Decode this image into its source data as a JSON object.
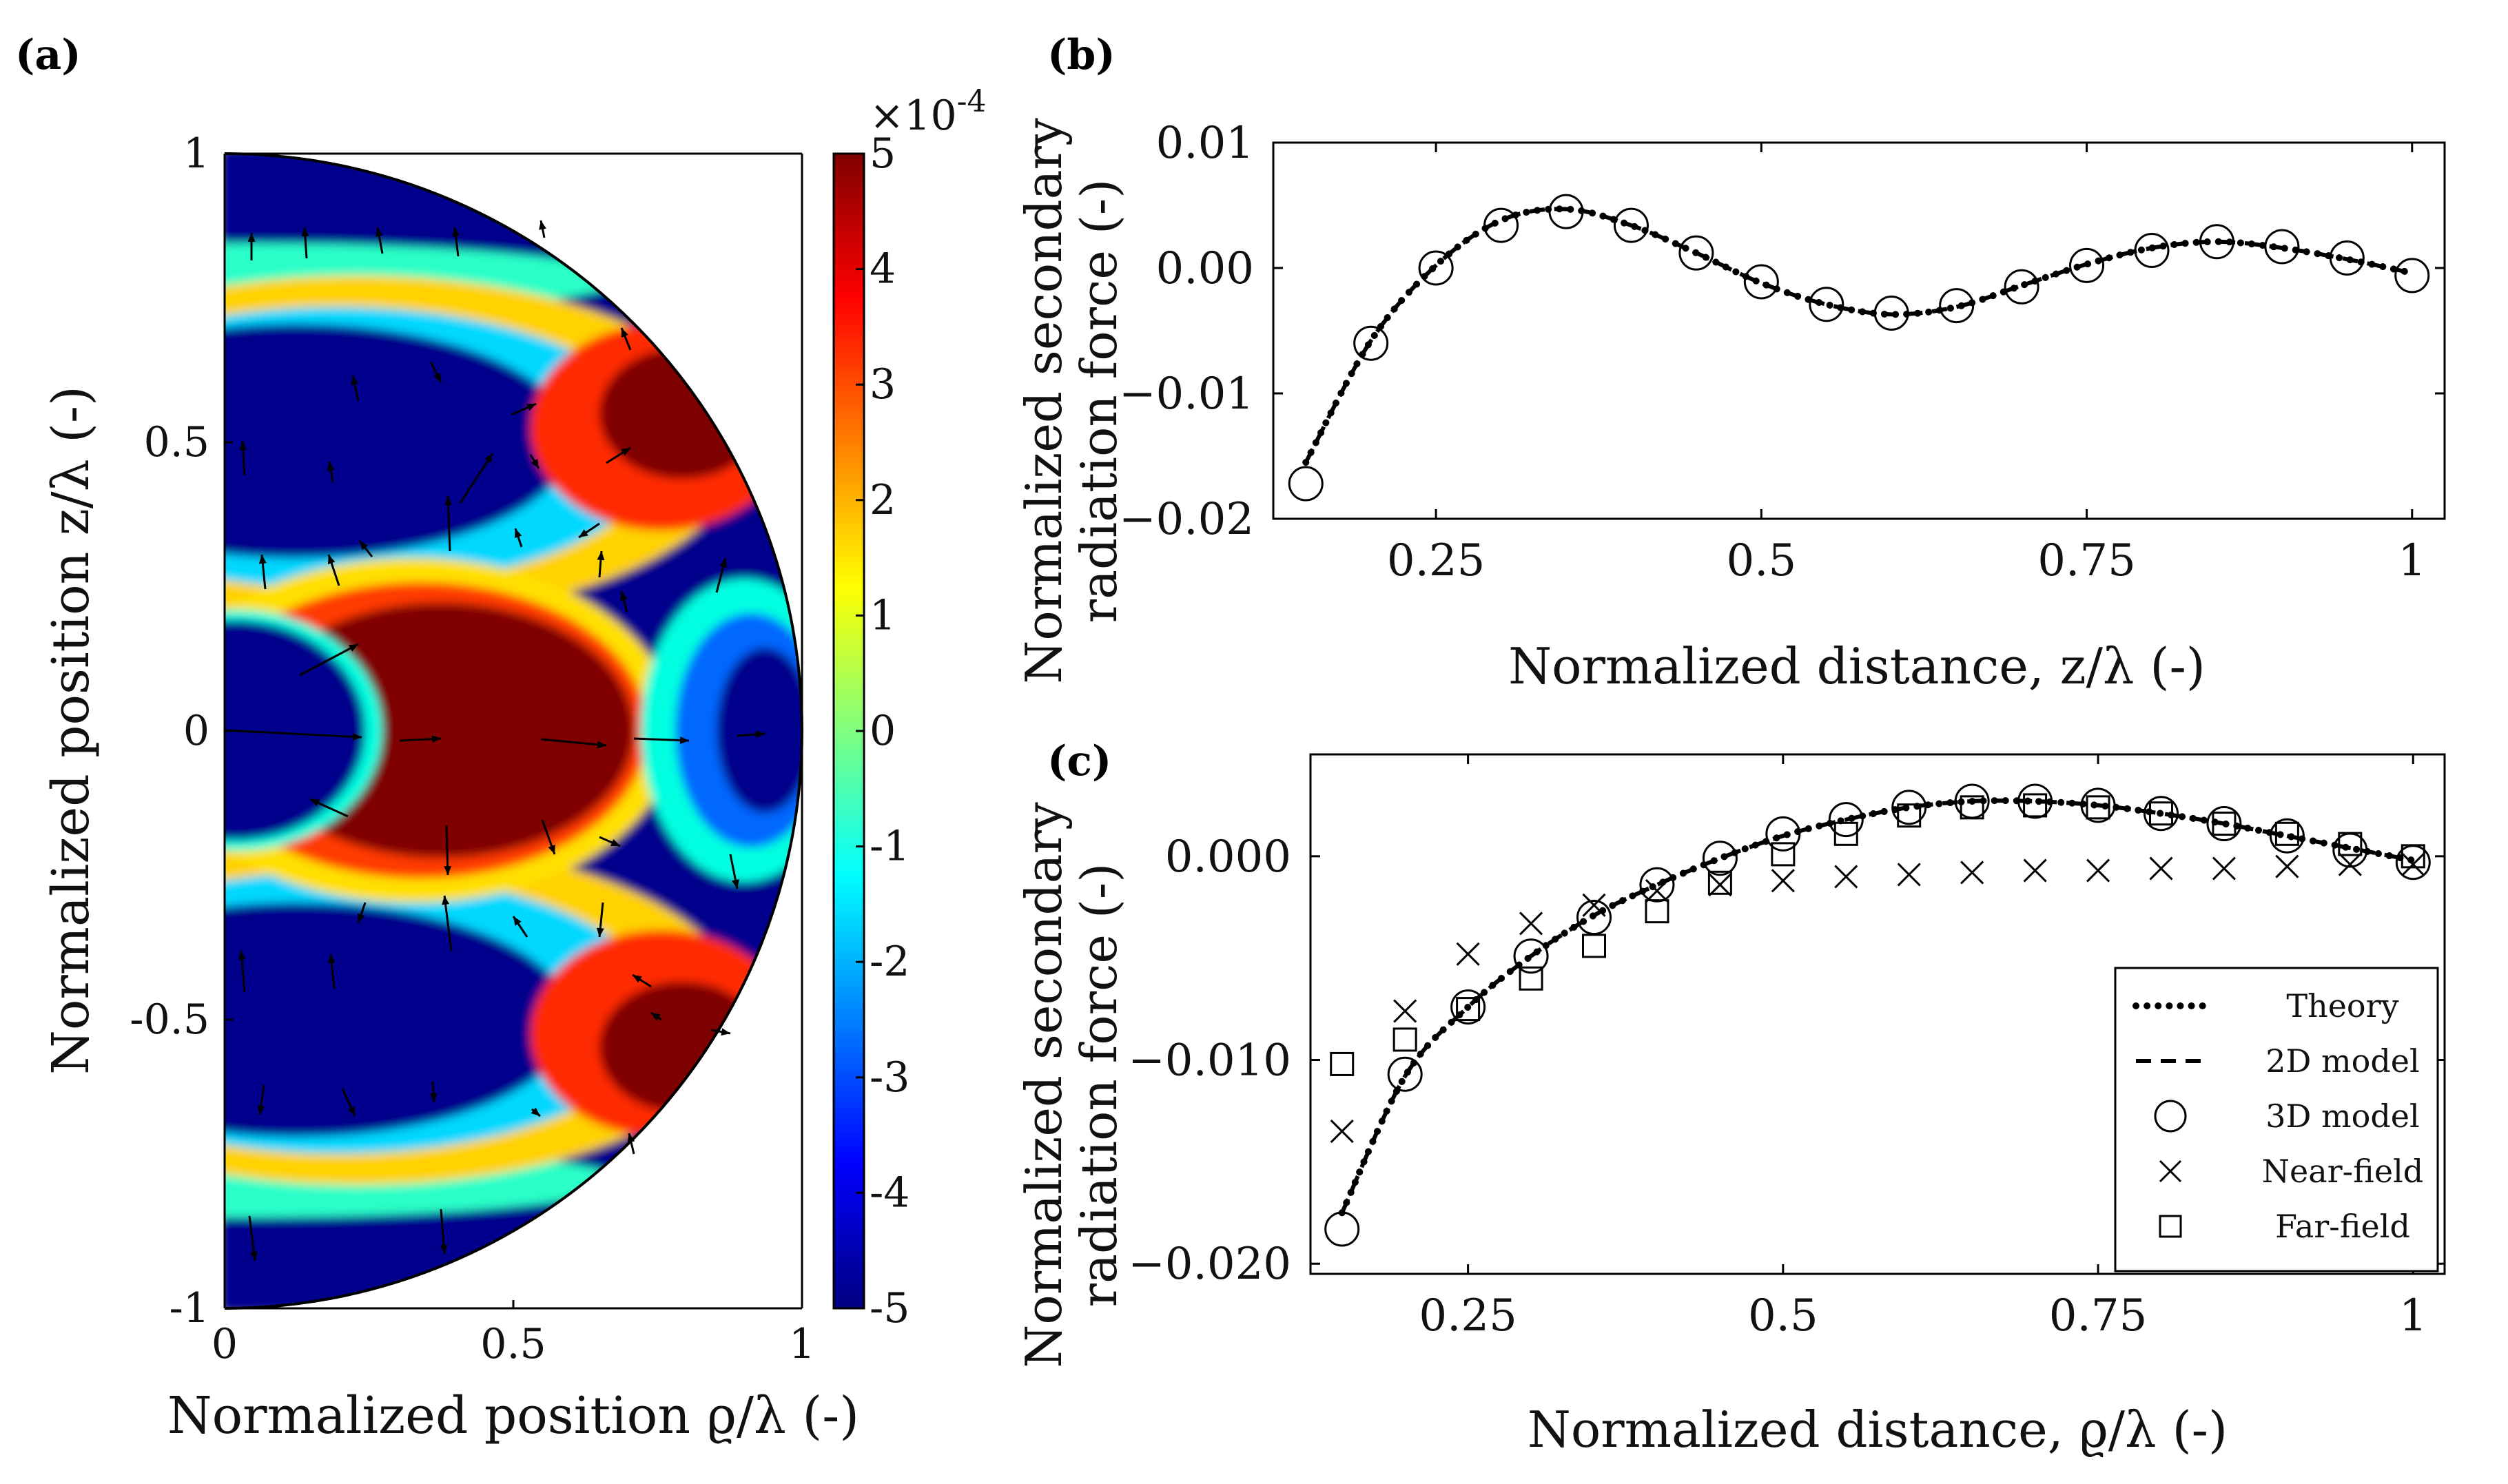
{
  "panel_labels": {
    "a": "(a)",
    "b": "(b)",
    "c": "(c)"
  },
  "chart_data": [
    {
      "id": "a",
      "type": "heatmap",
      "description_text": "",
      "xlabel": "Normalized position ϱ/λ (-)",
      "ylabel": "Normalized position z/λ (-)",
      "xlim": [
        0,
        1
      ],
      "ylim": [
        -1,
        1
      ],
      "xticks": [
        0,
        0.5,
        1
      ],
      "xtick_labels": [
        "0",
        "0.5",
        "1"
      ],
      "yticks": [
        1,
        0.5,
        0,
        -0.5,
        -1
      ],
      "ytick_labels": [
        "1",
        "0.5",
        "0",
        "-0.5",
        "-1"
      ],
      "colorbar": {
        "min": -5,
        "max": 5,
        "ticks": [
          5,
          4,
          3,
          2,
          1,
          0,
          -1,
          -2,
          -3,
          -4,
          -5
        ],
        "tick_labels": [
          "5",
          "4",
          "3",
          "2",
          "1",
          "0",
          "-1",
          "-2",
          "-3",
          "-4",
          "-5"
        ],
        "multiplier": "×10",
        "exponent": "-4",
        "colormap": [
          "#00007f",
          "#0000ff",
          "#007fff",
          "#00ffff",
          "#7fff7f",
          "#ffff00",
          "#ff7f00",
          "#ff0000",
          "#7f0000"
        ]
      }
    },
    {
      "id": "b",
      "type": "line",
      "xlabel": "Normalized distance, z/λ (-)",
      "ylabel_line1": "Normalized secondary",
      "ylabel_line2": "radiation force (-)",
      "xlim": [
        0.125,
        1.025
      ],
      "ylim": [
        -0.02,
        0.01
      ],
      "xticks": [
        0.25,
        0.5,
        0.75,
        1
      ],
      "xtick_labels": [
        "0.25",
        "0.5",
        "0.75",
        "1"
      ],
      "yticks": [
        0.01,
        0,
        -0.01,
        -0.02
      ],
      "ytick_labels": [
        "0.01",
        "0.00",
        "−0.01",
        "−0.02"
      ],
      "x": [
        0.15,
        0.2,
        0.25,
        0.3,
        0.35,
        0.4,
        0.45,
        0.5,
        0.55,
        0.6,
        0.65,
        0.7,
        0.75,
        0.8,
        0.85,
        0.9,
        0.95,
        1.0
      ],
      "series": [
        {
          "name": "Theory",
          "style": "dotted",
          "values": [
            -0.0155,
            -0.0058,
            0.0002,
            0.0038,
            0.0047,
            0.0034,
            0.0012,
            -0.0012,
            -0.0029,
            -0.0037,
            -0.0031,
            -0.0014,
            0.0003,
            0.0016,
            0.0021,
            0.0016,
            0.0007,
            -0.0004
          ]
        },
        {
          "name": "2D model",
          "style": "dashed",
          "values": [
            -0.0155,
            -0.0058,
            0.0002,
            0.0038,
            0.0047,
            0.0034,
            0.0012,
            -0.0012,
            -0.0029,
            -0.0037,
            -0.0031,
            -0.0014,
            0.0003,
            0.0016,
            0.0021,
            0.0016,
            0.0007,
            -0.0004
          ]
        },
        {
          "name": "3D model",
          "style": "circle",
          "values": [
            -0.0172,
            -0.006,
            0.0,
            0.0034,
            0.0045,
            0.0034,
            0.0012,
            -0.0011,
            -0.0029,
            -0.0036,
            -0.003,
            -0.0015,
            0.0002,
            0.0014,
            0.0021,
            0.0017,
            0.0008,
            -0.0006
          ]
        }
      ]
    },
    {
      "id": "c",
      "type": "line",
      "xlabel": "Normalized distance, ϱ/λ (-)",
      "ylabel_line1": "Normalized secondary",
      "ylabel_line2": "radiation force (-)",
      "xlim": [
        0.125,
        1.025
      ],
      "ylim": [
        -0.0205,
        0.005
      ],
      "xticks": [
        0.25,
        0.5,
        0.75,
        1
      ],
      "xtick_labels": [
        "0.25",
        "0.5",
        "0.75",
        "1"
      ],
      "yticks": [
        0,
        -0.01,
        -0.02
      ],
      "ytick_labels": [
        "0.000",
        "−0.010",
        "−0.020"
      ],
      "x": [
        0.15,
        0.2,
        0.25,
        0.3,
        0.35,
        0.4,
        0.45,
        0.5,
        0.55,
        0.6,
        0.65,
        0.7,
        0.75,
        0.8,
        0.85,
        0.9,
        0.95,
        1.0
      ],
      "legend_position": "bottom-right",
      "series": [
        {
          "name": "Theory",
          "style": "dotted",
          "values": [
            -0.0175,
            -0.0108,
            -0.0074,
            -0.0049,
            -0.0029,
            -0.0014,
            -0.0001,
            0.001,
            0.0018,
            0.0024,
            0.0027,
            0.0027,
            0.0025,
            0.0021,
            0.0016,
            0.001,
            0.0004,
            -0.0002
          ]
        },
        {
          "name": "2D model",
          "style": "dashed",
          "values": [
            -0.0175,
            -0.0108,
            -0.0074,
            -0.0049,
            -0.0029,
            -0.0014,
            -0.0001,
            0.001,
            0.0018,
            0.0024,
            0.0027,
            0.0027,
            0.0025,
            0.0021,
            0.0016,
            0.001,
            0.0004,
            -0.0002
          ]
        },
        {
          "name": "3D model",
          "style": "circle",
          "values": [
            -0.0183,
            -0.0107,
            -0.0074,
            -0.0049,
            -0.003,
            -0.0014,
            -0.0001,
            0.0011,
            0.0018,
            0.0024,
            0.0027,
            0.0027,
            0.0025,
            0.0021,
            0.0016,
            0.001,
            0.0003,
            -0.0003
          ]
        },
        {
          "name": "Near-field",
          "style": "cross",
          "values": [
            -0.0135,
            -0.0076,
            -0.0048,
            -0.0033,
            -0.0024,
            -0.0017,
            -0.0014,
            -0.0012,
            -0.001,
            -0.0009,
            -0.0008,
            -0.0007,
            -0.0007,
            -0.0006,
            -0.0006,
            -0.0005,
            -0.0004,
            -0.0004
          ]
        },
        {
          "name": "Far-field",
          "style": "square",
          "values": [
            -0.0102,
            -0.009,
            -0.0075,
            -0.006,
            -0.0044,
            -0.0027,
            -0.0013,
            0.0001,
            0.0011,
            0.002,
            0.0024,
            0.0025,
            0.0024,
            0.0021,
            0.0016,
            0.0011,
            0.0006,
            0.0
          ]
        }
      ]
    }
  ]
}
